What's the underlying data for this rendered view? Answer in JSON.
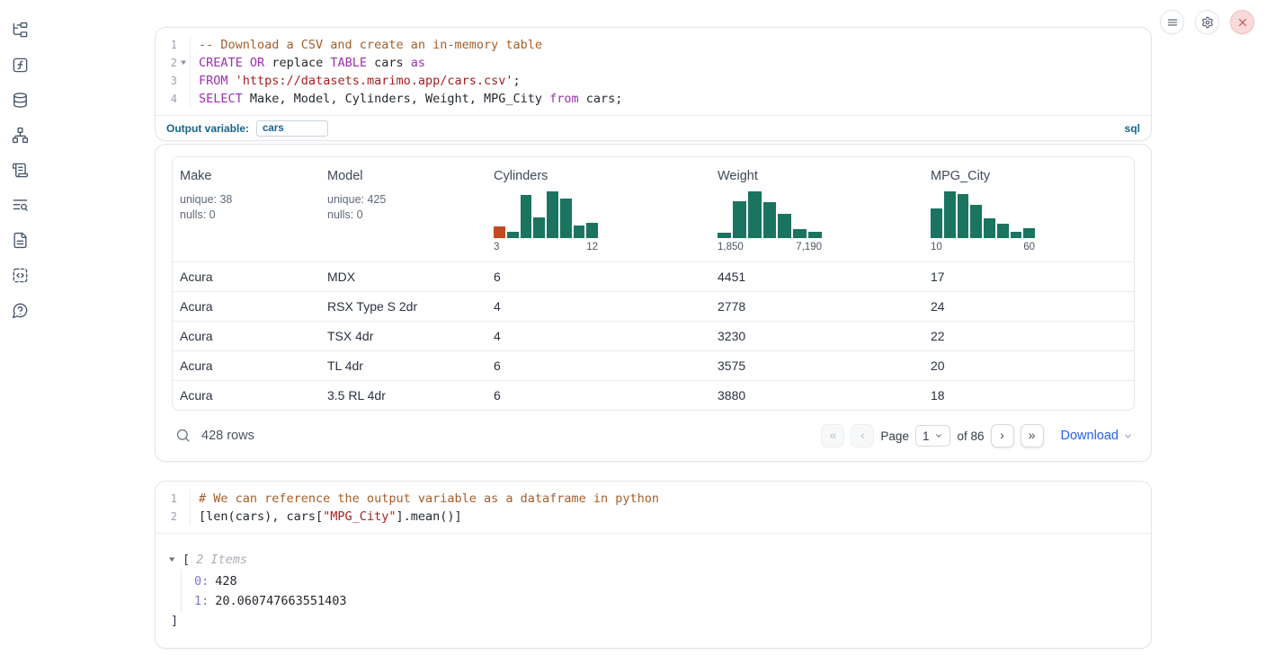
{
  "topbar": {
    "icons": [
      "menu-icon",
      "settings-icon",
      "close-icon"
    ]
  },
  "sidebar": {
    "icons": [
      "file-explorer-icon",
      "functions-icon",
      "datasources-icon",
      "dependency-graph-icon",
      "scratchpad-icon",
      "logs-icon",
      "documentation-icon",
      "snippets-icon",
      "help-icon"
    ]
  },
  "sql_cell": {
    "lines": [
      {
        "num": "1",
        "tokens": [
          {
            "c": "com",
            "t": "-- Download a CSV and create an in-memory table"
          }
        ]
      },
      {
        "num": "2",
        "fold": true,
        "tokens": [
          {
            "c": "kw",
            "t": "CREATE"
          },
          {
            "c": "def",
            "t": " "
          },
          {
            "c": "kw",
            "t": "OR"
          },
          {
            "c": "def",
            "t": " replace "
          },
          {
            "c": "kw",
            "t": "TABLE"
          },
          {
            "c": "def",
            "t": " cars "
          },
          {
            "c": "kw",
            "t": "as"
          }
        ]
      },
      {
        "num": "3",
        "tokens": [
          {
            "c": "kw",
            "t": "FROM"
          },
          {
            "c": "def",
            "t": " "
          },
          {
            "c": "str",
            "t": "'https://datasets.marimo.app/cars.csv'"
          },
          {
            "c": "def",
            "t": ";"
          }
        ]
      },
      {
        "num": "4",
        "tokens": [
          {
            "c": "kw",
            "t": "SELECT"
          },
          {
            "c": "def",
            "t": " Make, Model, Cylinders, Weight, MPG_City "
          },
          {
            "c": "kw",
            "t": "from"
          },
          {
            "c": "def",
            "t": " cars;"
          }
        ]
      }
    ],
    "output_variable_label": "Output variable:",
    "output_variable_value": "cars",
    "language_badge": "sql"
  },
  "table": {
    "columns": [
      {
        "name": "Make",
        "stats": [
          "unique: 38",
          "nulls: 0"
        ]
      },
      {
        "name": "Model",
        "stats": [
          "unique: 425",
          "nulls: 0"
        ]
      },
      {
        "name": "Cylinders",
        "histogram": {
          "bars": [
            25,
            13,
            92,
            45,
            100,
            85,
            26,
            33
          ],
          "outlier_index": 0,
          "min_label": "3",
          "max_label": "12"
        }
      },
      {
        "name": "Weight",
        "histogram": {
          "bars": [
            12,
            78,
            100,
            76,
            52,
            20,
            14
          ],
          "outlier_index": null,
          "min_label": "1,850",
          "max_label": "7,190"
        }
      },
      {
        "name": "MPG_City",
        "histogram": {
          "bars": [
            64,
            100,
            94,
            72,
            43,
            30,
            14,
            22
          ],
          "outlier_index": null,
          "min_label": "10",
          "max_label": "60"
        }
      }
    ],
    "rows": [
      [
        "Acura",
        "MDX",
        "6",
        "4451",
        "17"
      ],
      [
        "Acura",
        "RSX Type S 2dr",
        "4",
        "2778",
        "24"
      ],
      [
        "Acura",
        "TSX 4dr",
        "4",
        "3230",
        "22"
      ],
      [
        "Acura",
        "TL 4dr",
        "6",
        "3575",
        "20"
      ],
      [
        "Acura",
        "3.5 RL 4dr",
        "6",
        "3880",
        "18"
      ]
    ],
    "footer": {
      "row_count": "428 rows",
      "page_label": "Page",
      "page_value": "1",
      "of_label": "of 86",
      "first": "«",
      "prev": "‹",
      "next": "›",
      "last": "»",
      "download_label": "Download"
    }
  },
  "python_cell": {
    "lines": [
      {
        "num": "1",
        "tokens": [
          {
            "c": "com",
            "t": "# We can reference the output variable as a dataframe in python"
          }
        ]
      },
      {
        "num": "2",
        "tokens": [
          {
            "c": "def",
            "t": "[len(cars), cars["
          },
          {
            "c": "str",
            "t": "\"MPG_City\""
          },
          {
            "c": "def",
            "t": "].mean()]"
          }
        ]
      }
    ]
  },
  "list_output": {
    "open_bracket": "[",
    "items_label": "2 Items",
    "entries": [
      {
        "index": "0:",
        "value": "428"
      },
      {
        "index": "1:",
        "value": "20.060747663551403"
      }
    ],
    "close_bracket": "]"
  },
  "colors": {
    "histogram_green": "#1a7460",
    "histogram_orange": "#c24a21",
    "accent_blue": "#17648f",
    "link_blue": "#2464e4"
  }
}
